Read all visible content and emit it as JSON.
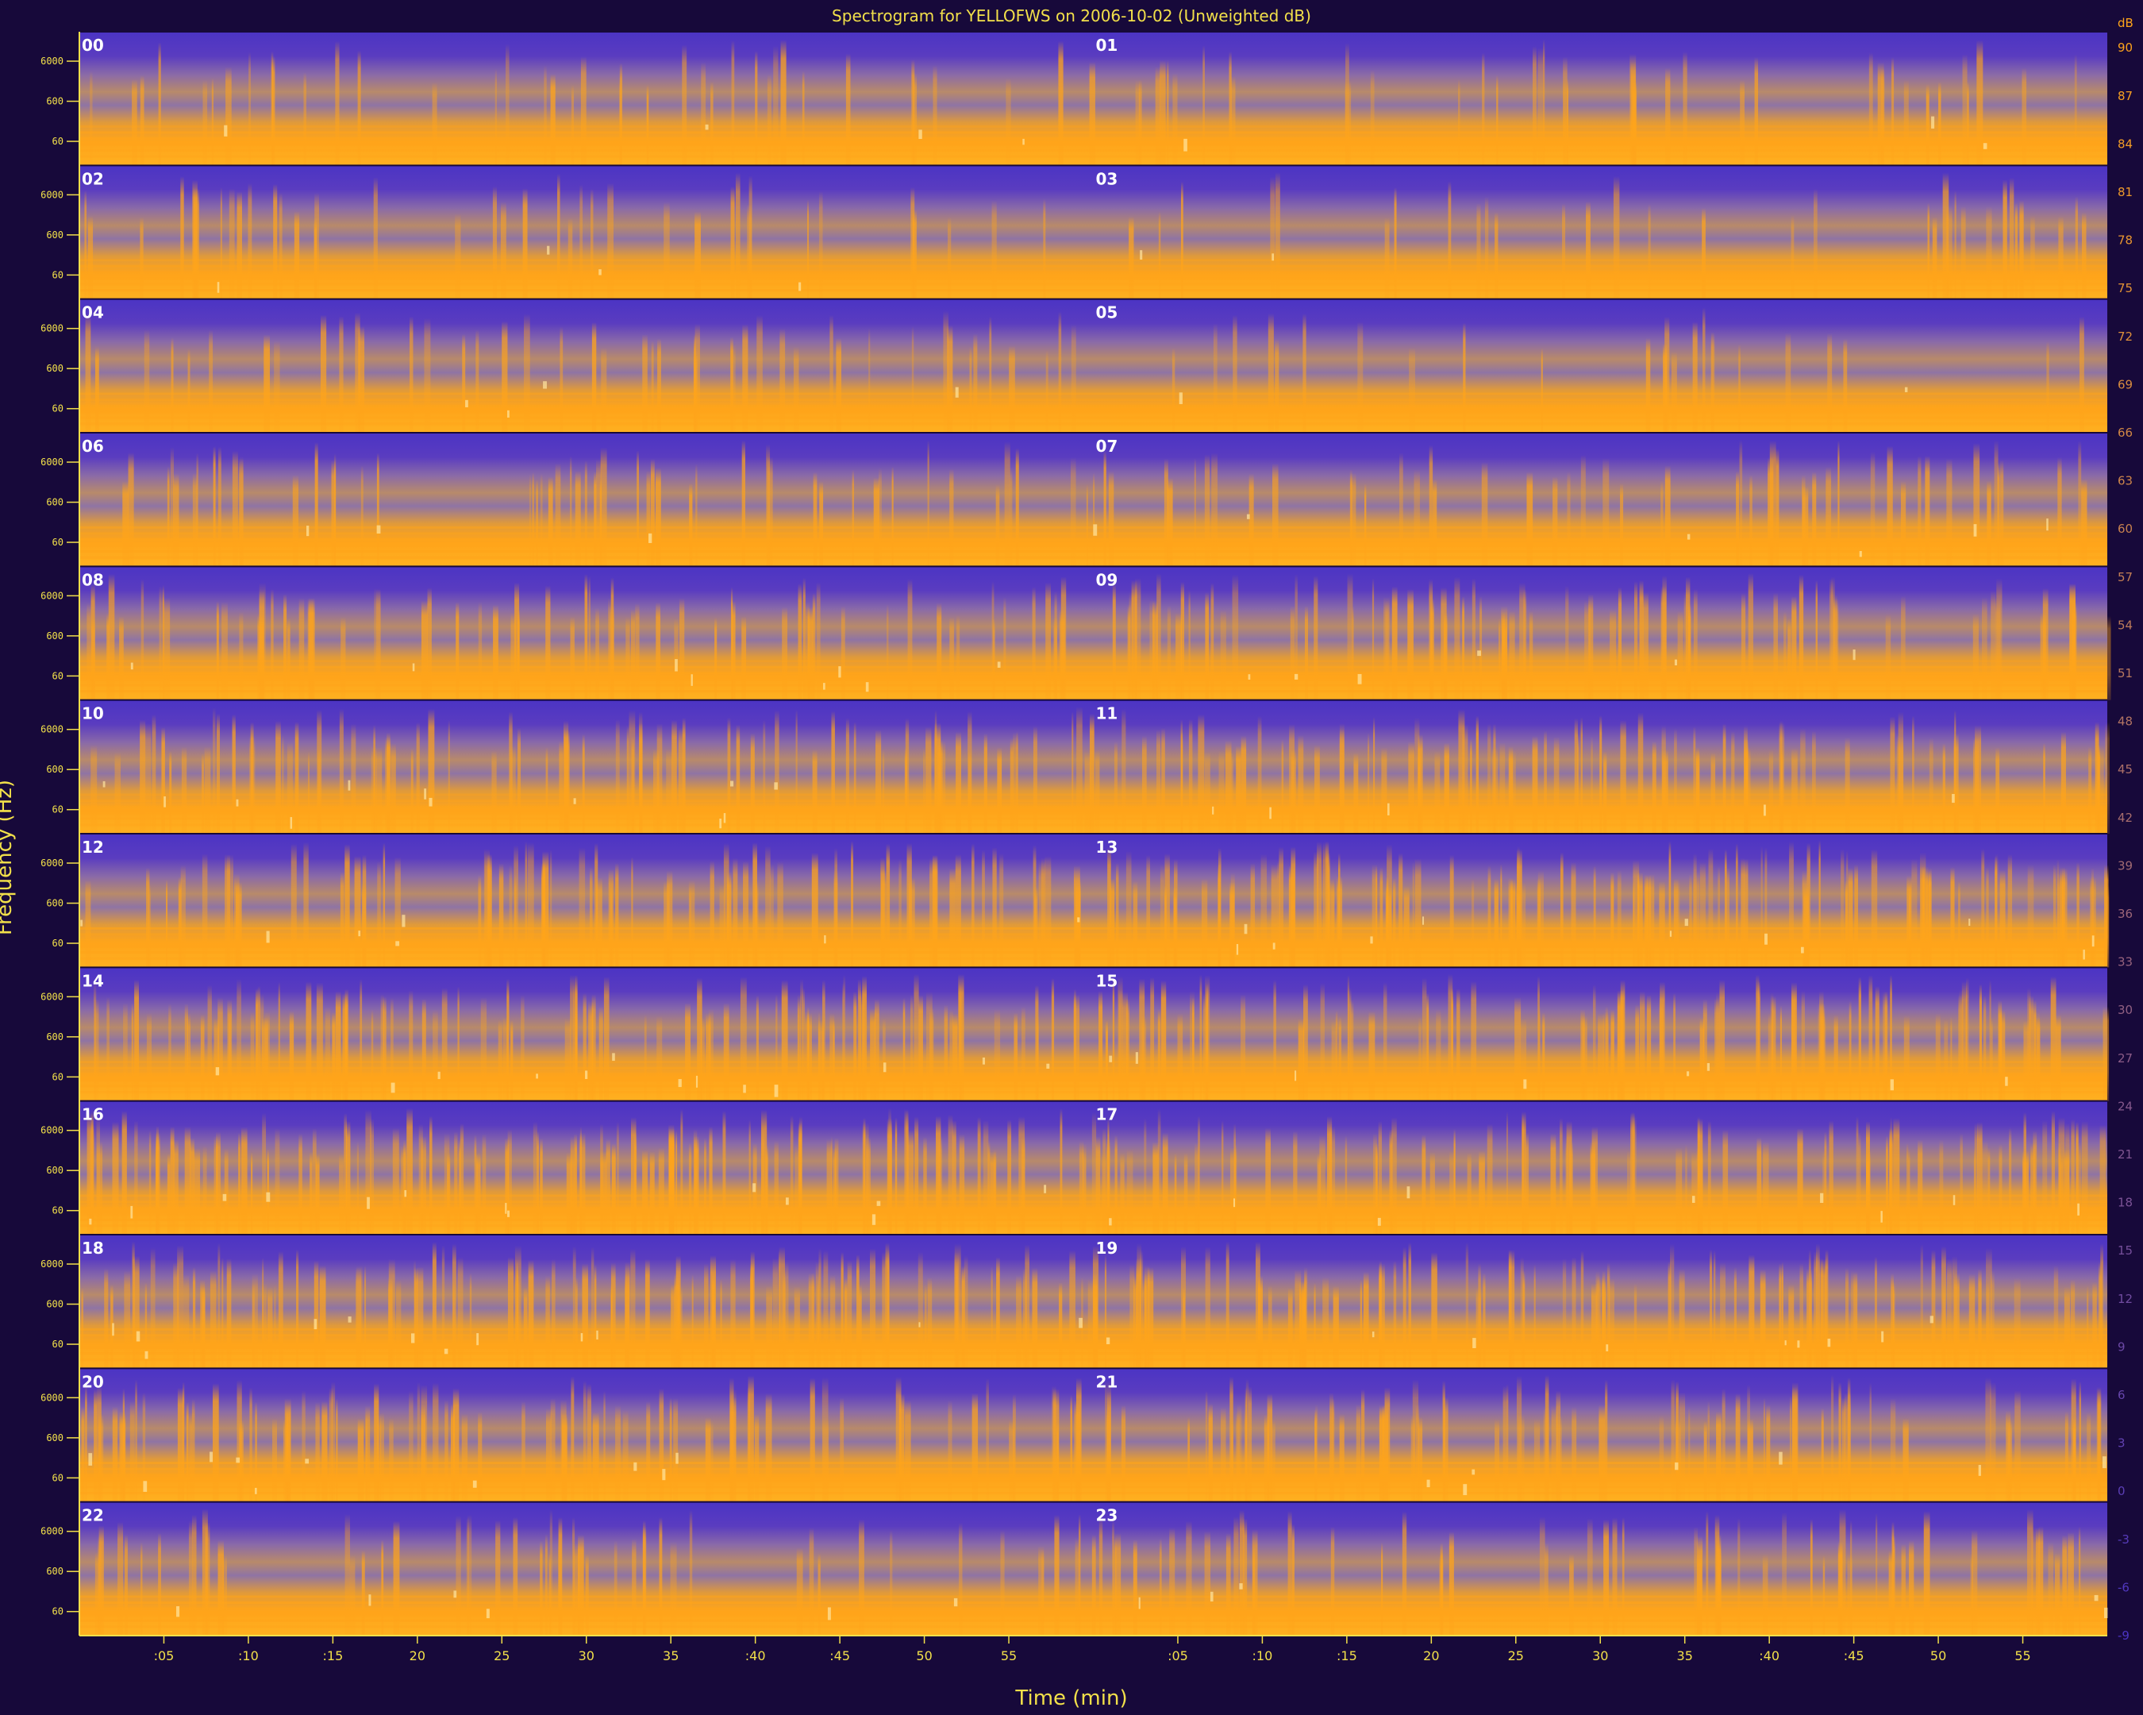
{
  "title": "Spectrogram for YELLOFWS on 2006-10-02 (Unweighted dB)",
  "chart_data": {
    "type": "heatmap",
    "title": "Spectrogram for YELLOFWS on 2006-10-02 (Unweighted dB)",
    "xlabel": "Time (min)",
    "ylabel": "Frequency (Hz)",
    "hour_labels": [
      "00",
      "01",
      "02",
      "03",
      "04",
      "05",
      "06",
      "07",
      "08",
      "09",
      "10",
      "11",
      "12",
      "13",
      "14",
      "15",
      "16",
      "17",
      "18",
      "19",
      "20",
      "21",
      "22",
      "23"
    ],
    "x_tick_labels": [
      ":05",
      ":10",
      ":15",
      "20",
      "25",
      "30",
      "35",
      ":40",
      ":45",
      "50",
      "55"
    ],
    "y_tick_labels": [
      "60",
      "600",
      "6000"
    ],
    "colorbar": {
      "unit": "dB",
      "ticks": [
        90,
        87,
        84,
        81,
        78,
        75,
        72,
        69,
        66,
        63,
        60,
        57,
        54,
        51,
        48,
        45,
        42,
        39,
        36,
        33,
        30,
        27,
        24,
        21,
        18,
        15,
        12,
        9,
        6,
        3,
        0,
        -3,
        -6,
        -9
      ],
      "range": [
        -9,
        91
      ]
    },
    "row_activity": [
      0.15,
      0.12,
      0.12,
      0.25,
      0.45,
      0.55,
      0.65,
      0.7,
      0.75,
      0.7,
      0.55,
      0.3
    ],
    "colors": {
      "low": "#4b34c4",
      "mid": "#8a6aa8",
      "high": "#ffa41a",
      "peak": "#ffe6a0",
      "text": "#f2e04a",
      "axis": "#f2e04a"
    }
  }
}
